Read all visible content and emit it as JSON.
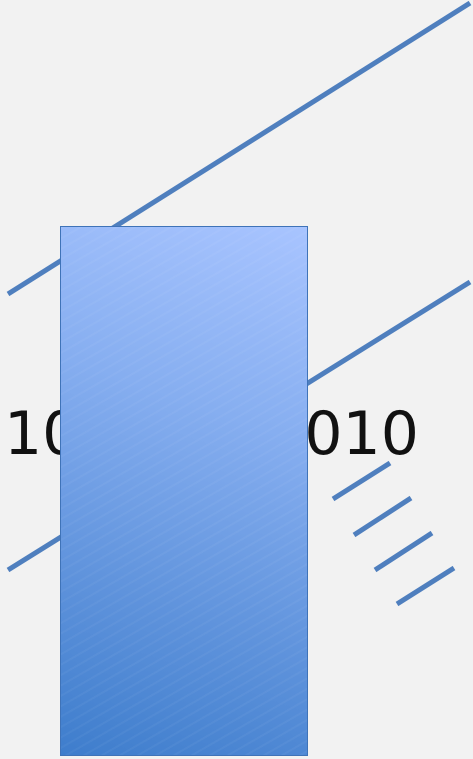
{
  "colors": {
    "background": "#f2f2f2",
    "line": "#4f7fbe",
    "block_top": "#a8c4ff",
    "block_bottom": "#3e7dcc",
    "block_border": "#3f73b8",
    "text": "#111111"
  },
  "text": {
    "bits_left": "10",
    "bits_right": "010"
  }
}
